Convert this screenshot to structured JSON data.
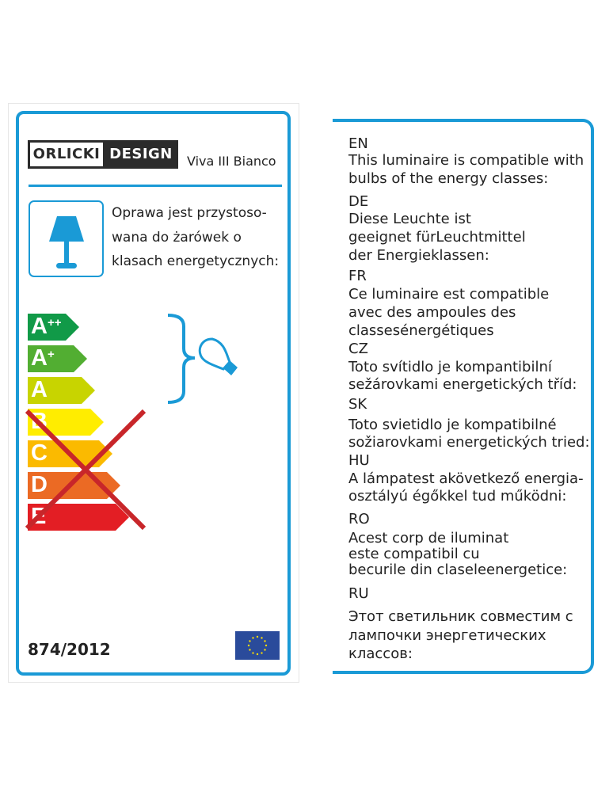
{
  "left_label": {
    "brand": {
      "part1": "ORLICKI",
      "part2": "DESIGN"
    },
    "product_name": "Viva III Bianco",
    "description_lines": [
      "Oprawa jest przystoso-",
      "wana do żarówek o",
      "klasach energetycznych:"
    ],
    "energy_classes": [
      {
        "letter": "A",
        "sup": "++",
        "color": "#119a48",
        "compatible": true
      },
      {
        "letter": "A",
        "sup": "+",
        "color": "#52ae32",
        "compatible": true
      },
      {
        "letter": "A",
        "sup": "",
        "color": "#c8d400",
        "compatible": true
      },
      {
        "letter": "B",
        "sup": "",
        "color": "#ffed00",
        "compatible": false
      },
      {
        "letter": "C",
        "sup": "",
        "color": "#fbba00",
        "compatible": false
      },
      {
        "letter": "D",
        "sup": "",
        "color": "#eb6a24",
        "compatible": false
      },
      {
        "letter": "E",
        "sup": "",
        "color": "#e31e24",
        "compatible": false
      }
    ],
    "regulation": "874/2012",
    "icons": [
      "table-lamp-icon",
      "bulb-icon",
      "eu-flag-icon",
      "cross-mark-icon"
    ],
    "accent_color": "#1a9ad6"
  },
  "right_label": {
    "lines": [
      "EN",
      "This luminaire is compatible with",
      "bulbs of the energy classes:",
      "DE",
      "Diese Leuchte ist",
      "geeignet fürLeuchtmittel",
      "der Energieklassen:",
      "FR",
      "Ce luminaire est compatible",
      "avec des ampoules des",
      "classesénergétiques",
      "CZ",
      "Toto svítidlo je kompantibilní",
      "sežárovkami energetických tříd:",
      "SK",
      "Toto svietidlo je kompatibilné",
      "sožiarovkami energetických tried:",
      "HU",
      "A lámpatest akövetkező energia-",
      "osztályú égőkkel tud működni:",
      "RO",
      "Acest corp de iluminat",
      "este compatibil cu",
      "becurile din claseleenergetice:",
      "RU",
      "Этот светильник совместим с",
      "лампочки энергетических",
      "классов:"
    ]
  }
}
